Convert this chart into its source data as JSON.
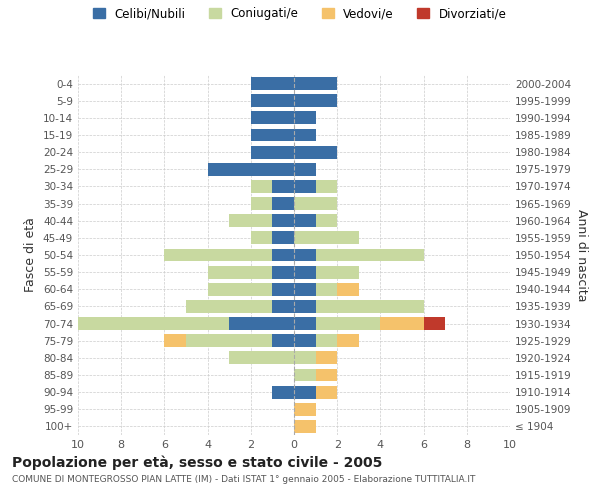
{
  "age_groups": [
    "100+",
    "95-99",
    "90-94",
    "85-89",
    "80-84",
    "75-79",
    "70-74",
    "65-69",
    "60-64",
    "55-59",
    "50-54",
    "45-49",
    "40-44",
    "35-39",
    "30-34",
    "25-29",
    "20-24",
    "15-19",
    "10-14",
    "5-9",
    "0-4"
  ],
  "birth_years": [
    "≤ 1904",
    "1905-1909",
    "1910-1914",
    "1915-1919",
    "1920-1924",
    "1925-1929",
    "1930-1934",
    "1935-1939",
    "1940-1944",
    "1945-1949",
    "1950-1954",
    "1955-1959",
    "1960-1964",
    "1965-1969",
    "1970-1974",
    "1975-1979",
    "1980-1984",
    "1985-1989",
    "1990-1994",
    "1995-1999",
    "2000-2004"
  ],
  "male": {
    "celibi": [
      0,
      0,
      1,
      0,
      0,
      1,
      3,
      1,
      1,
      1,
      1,
      1,
      1,
      1,
      1,
      4,
      2,
      2,
      2,
      2,
      2
    ],
    "coniugati": [
      0,
      0,
      0,
      0,
      3,
      4,
      7,
      4,
      3,
      3,
      5,
      1,
      2,
      1,
      1,
      0,
      0,
      0,
      0,
      0,
      0
    ],
    "vedovi": [
      0,
      0,
      0,
      0,
      0,
      1,
      0,
      0,
      0,
      0,
      0,
      0,
      0,
      0,
      0,
      0,
      0,
      0,
      0,
      0,
      0
    ],
    "divorziati": [
      0,
      0,
      0,
      0,
      0,
      0,
      0,
      0,
      0,
      0,
      0,
      0,
      0,
      0,
      0,
      0,
      0,
      0,
      0,
      0,
      0
    ]
  },
  "female": {
    "nubili": [
      0,
      0,
      1,
      0,
      0,
      1,
      1,
      1,
      1,
      1,
      1,
      0,
      1,
      0,
      1,
      1,
      2,
      1,
      1,
      2,
      2
    ],
    "coniugate": [
      0,
      0,
      0,
      1,
      1,
      1,
      3,
      5,
      1,
      2,
      5,
      3,
      1,
      2,
      1,
      0,
      0,
      0,
      0,
      0,
      0
    ],
    "vedove": [
      1,
      1,
      1,
      1,
      1,
      1,
      2,
      0,
      1,
      0,
      0,
      0,
      0,
      0,
      0,
      0,
      0,
      0,
      0,
      0,
      0
    ],
    "divorziate": [
      0,
      0,
      0,
      0,
      0,
      0,
      1,
      0,
      0,
      0,
      0,
      0,
      0,
      0,
      0,
      0,
      0,
      0,
      0,
      0,
      0
    ]
  },
  "color_celibi": "#3a6ea5",
  "color_coniugati": "#c8d9a0",
  "color_vedovi": "#f5c26b",
  "color_divorziati": "#c0392b",
  "xlim": 10,
  "title": "Popolazione per età, sesso e stato civile - 2005",
  "subtitle": "COMUNE DI MONTEGROSSO PIAN LATTE (IM) - Dati ISTAT 1° gennaio 2005 - Elaborazione TUTTITALIA.IT",
  "ylabel_left": "Fasce di età",
  "ylabel_right": "Anni di nascita",
  "bg_color": "#ffffff",
  "grid_color": "#cccccc"
}
